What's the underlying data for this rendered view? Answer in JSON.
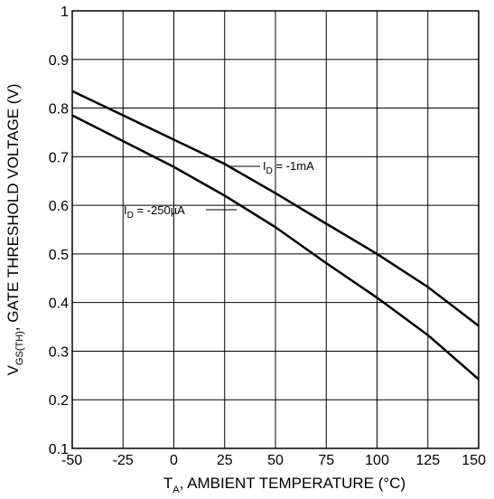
{
  "chart_data": {
    "type": "line",
    "xlabel": {
      "main": "T",
      "sub": "A",
      "rest": ", AMBIENT TEMPERATURE (°C)"
    },
    "ylabel": {
      "main": "V",
      "sub": "GS(TH)",
      "rest": ",  GATE THRESHOLD VOLTAGE (V)"
    },
    "xlim": [
      -50,
      150
    ],
    "ylim": [
      0.1,
      1.0
    ],
    "x_ticks": [
      "-50",
      "-25",
      "0",
      "25",
      "50",
      "75",
      "100",
      "125",
      "150"
    ],
    "y_ticks": [
      "0.1",
      "0.2",
      "0.3",
      "0.4",
      "0.5",
      "0.6",
      "0.7",
      "0.8",
      "0.9",
      "1"
    ],
    "grid": true,
    "series": [
      {
        "name": "I_D = -1mA",
        "label": {
          "main": "I",
          "sub": "D",
          "rest": " = -1mA"
        },
        "x": [
          -50,
          -25,
          0,
          25,
          50,
          75,
          100,
          125,
          150
        ],
        "y": [
          0.835,
          0.785,
          0.735,
          0.685,
          0.625,
          0.562,
          0.5,
          0.432,
          0.352
        ]
      },
      {
        "name": "I_D = -250µA",
        "label": {
          "main": "I",
          "sub": "D",
          "rest": " = -250µA"
        },
        "x": [
          -50,
          -25,
          0,
          25,
          50,
          75,
          100,
          125,
          150
        ],
        "y": [
          0.785,
          0.732,
          0.679,
          0.62,
          0.555,
          0.481,
          0.41,
          0.333,
          0.242
        ]
      }
    ]
  }
}
